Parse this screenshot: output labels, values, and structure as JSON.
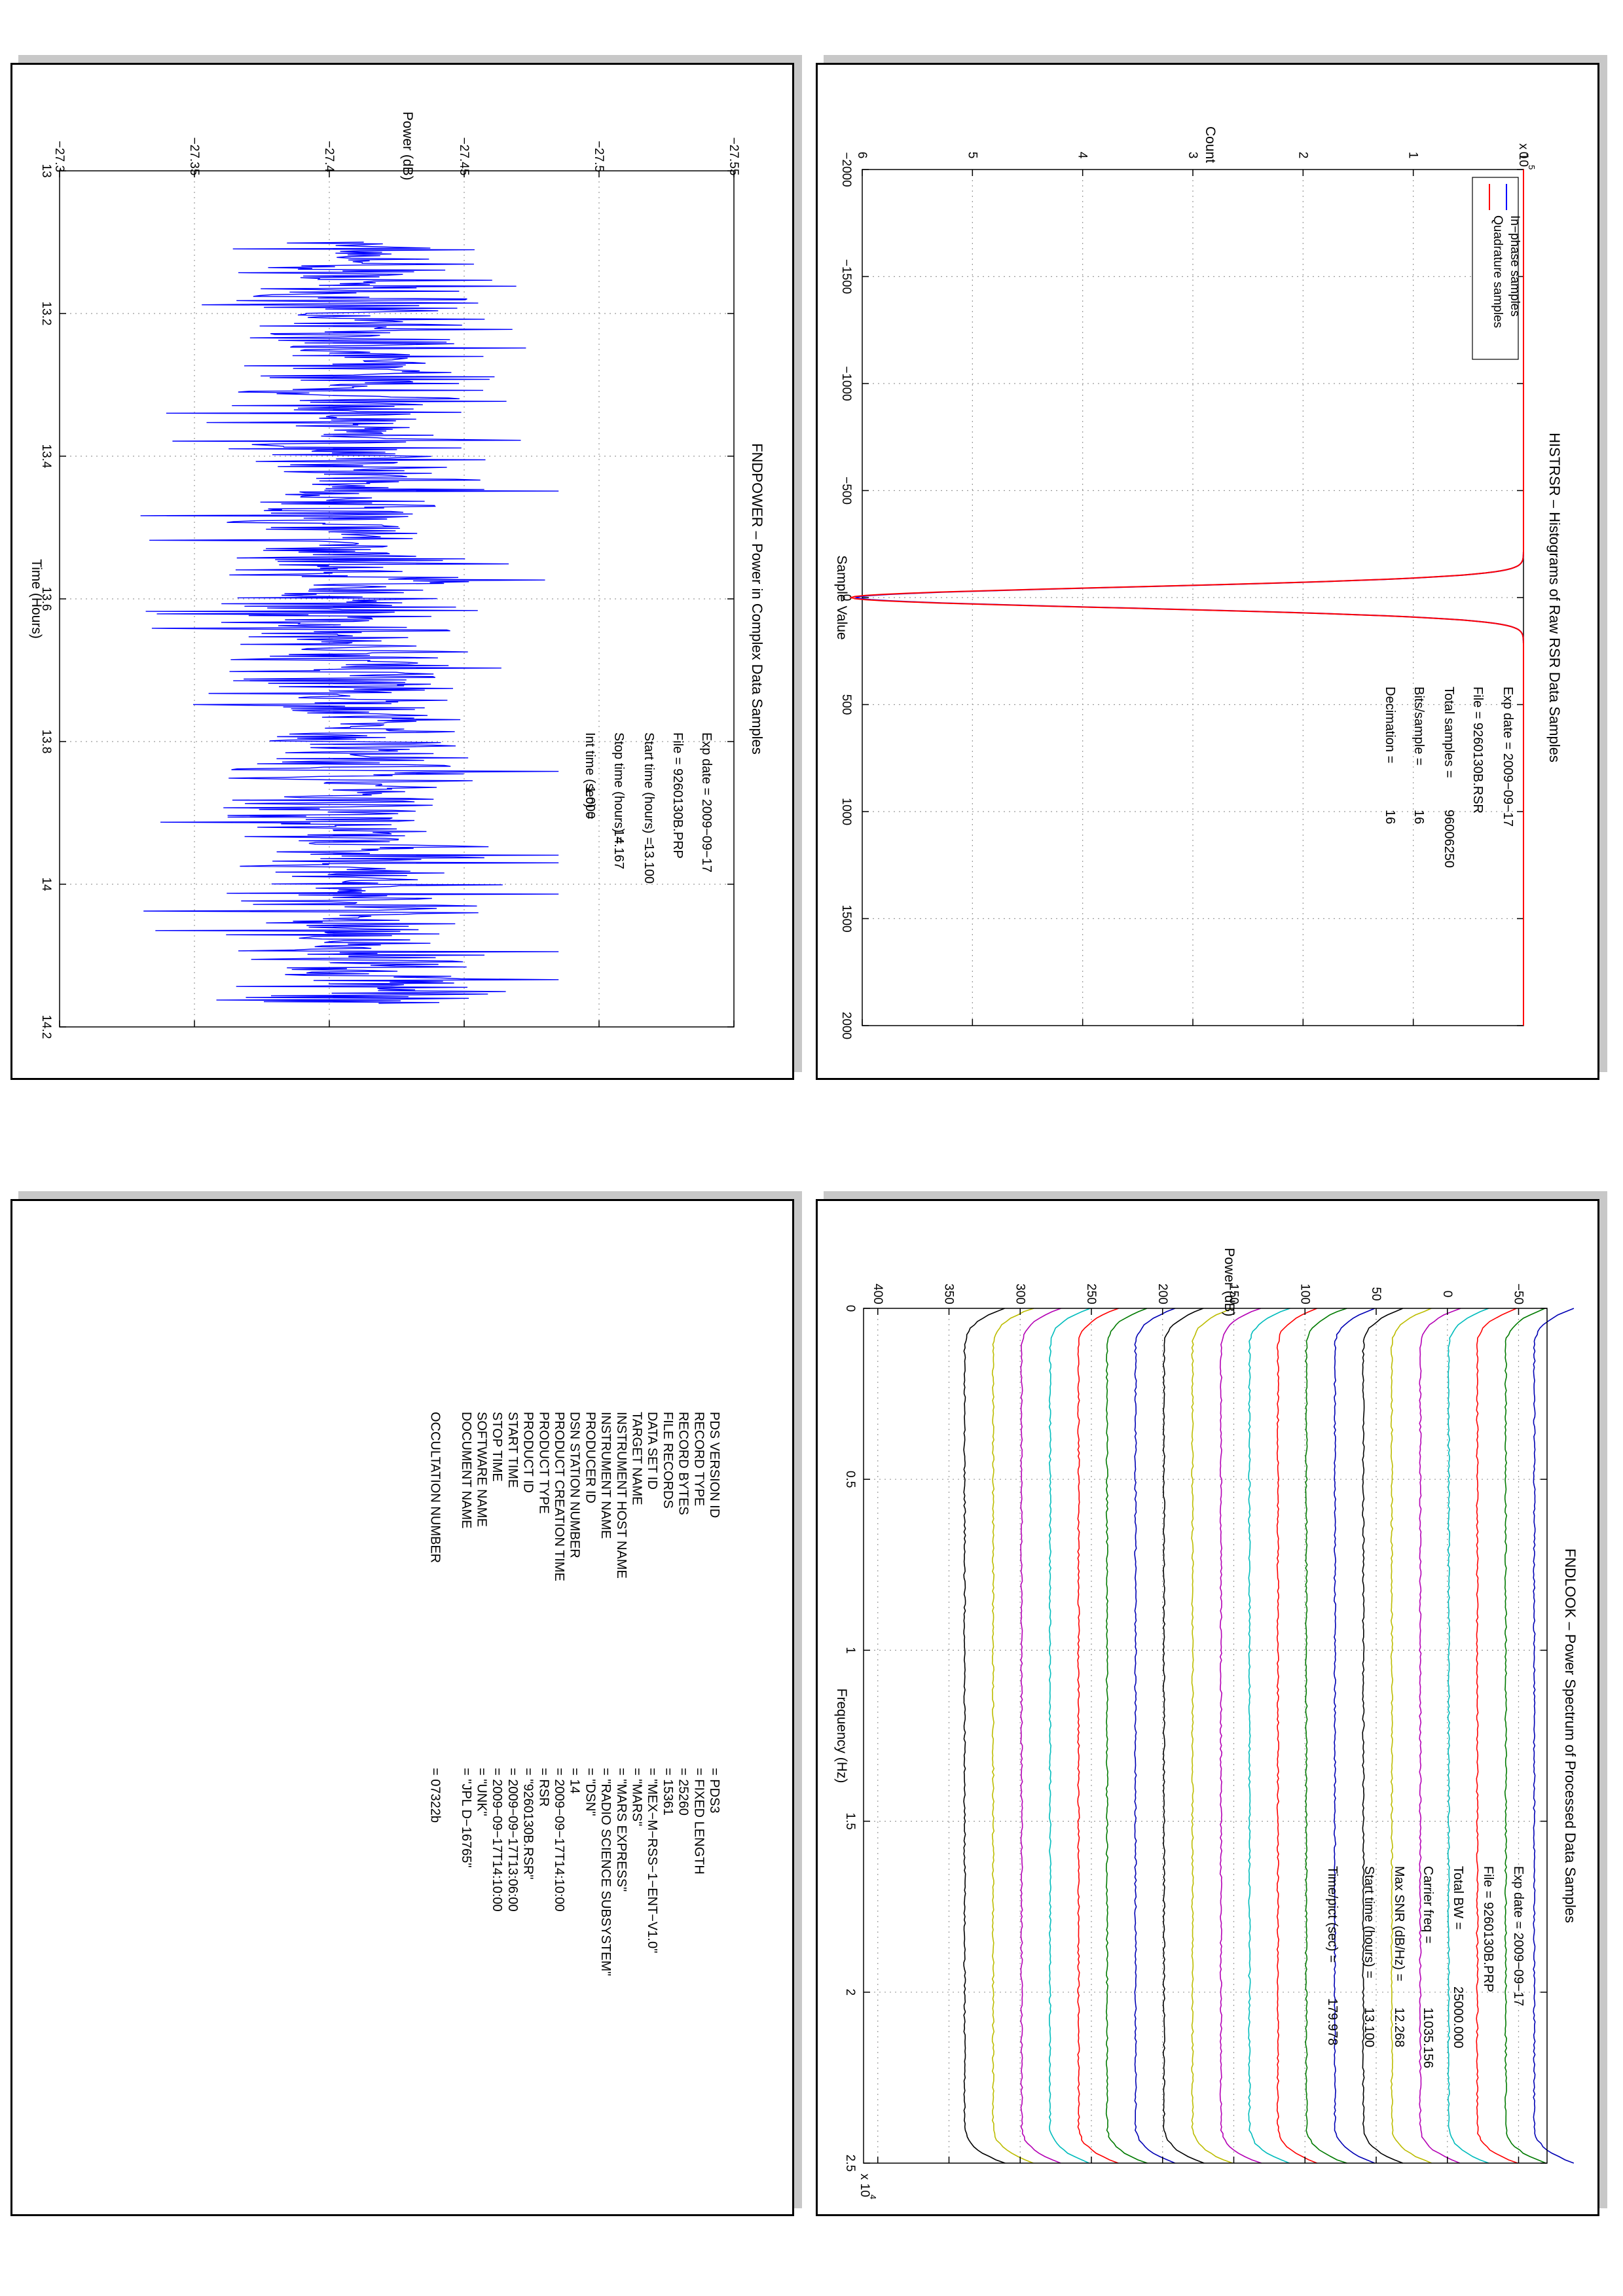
{
  "chart_data": [
    {
      "type": "line",
      "title": "HISTRSR – Histograms of Raw RSR Data Samples",
      "xlabel": "Sample Value",
      "ylabel": "Count",
      "y_exponent": "x 10",
      "y_exponent_power": "5",
      "xlim": [
        -2000,
        2000
      ],
      "ylim": [
        0,
        6
      ],
      "xticks": [
        "−2000",
        "−1500",
        "−1000",
        "−500",
        "0",
        "500",
        "1000",
        "1500",
        "2000"
      ],
      "yticks": [
        "0",
        "1",
        "2",
        "3",
        "4",
        "5",
        "6"
      ],
      "grid": true,
      "legend_position": "top-left",
      "series": [
        {
          "name": "In−phase samples",
          "color": "#0000ff",
          "shape": "gaussian",
          "peak": 6.05,
          "center": 0,
          "sigma": 48
        },
        {
          "name": "Quadrature samples",
          "color": "#ff0000",
          "shape": "gaussian",
          "peak": 6.1,
          "center": 0,
          "sigma": 48
        }
      ],
      "annotations": [
        {
          "label": "Exp date = 2009−09−17",
          "value": ""
        },
        {
          "label": "File = 9260130B.RSR",
          "value": ""
        },
        {
          "label": "Total samples =",
          "value": "96006250"
        },
        {
          "label": "Bits/sample   =",
          "value": "16"
        },
        {
          "label": "Decimation    =",
          "value": "16"
        }
      ]
    },
    {
      "type": "line",
      "title": "FNDPOWER – Power in Complex Data Samples",
      "xlabel": "Time (Hours)",
      "ylabel": "Power (dB)",
      "xlim": [
        13,
        14.2
      ],
      "ylim": [
        -27.55,
        -27.3
      ],
      "xticks": [
        "13",
        "13.2",
        "13.4",
        "13.6",
        "13.8",
        "14",
        "14.2"
      ],
      "yticks": [
        "−27.55",
        "−27.5",
        "−27.45",
        "−27.4",
        "−27.35",
        "−27.3"
      ],
      "grid": true,
      "series": [
        {
          "name": "",
          "color": "#0000ff",
          "x_start": 13.1,
          "x_end": 14.167,
          "points": 900,
          "mean": -27.41,
          "spread": 0.075,
          "peak_high": -27.33,
          "peak_low": -27.485
        }
      ],
      "annotations": [
        {
          "label": "Exp date = 2009−09−17",
          "value": ""
        },
        {
          "label": "File = 9260130B.PRP",
          "value": ""
        },
        {
          "label": "Start time (hours) =",
          "value": "13.100"
        },
        {
          "label": "Stop time (hours) =",
          "value": "14.167"
        },
        {
          "label": "Int time (sec) =",
          "value": "1.000"
        }
      ]
    },
    {
      "type": "line",
      "title": "FNDLOOK – Power Spectrum of Processed Data Samples",
      "xlabel": "Frequency (Hz)",
      "ylabel": "Power (dB)",
      "x_exponent": "x 10",
      "x_exponent_power": "4",
      "xlim": [
        0,
        2.5
      ],
      "ylim": [
        -70,
        410
      ],
      "xticks": [
        "0",
        "0.5",
        "1",
        "1.5",
        "2",
        "2.5"
      ],
      "yticks": [
        "−50",
        "0",
        "50",
        "100",
        "150",
        "200",
        "250",
        "300",
        "350",
        "400"
      ],
      "grid": true,
      "series": [
        {
          "name": "",
          "color": "#0000b4",
          "level": -61
        },
        {
          "name": "",
          "color": "#007a00",
          "level": -41
        },
        {
          "name": "",
          "color": "#ff0000",
          "level": -21
        },
        {
          "name": "",
          "color": "#00bcbc",
          "level": -1
        },
        {
          "name": "",
          "color": "#b400b4",
          "level": 19
        },
        {
          "name": "",
          "color": "#bcbc00",
          "level": 39
        },
        {
          "name": "",
          "color": "#000000",
          "level": 59
        },
        {
          "name": "",
          "color": "#0000b4",
          "level": 79
        },
        {
          "name": "",
          "color": "#007a00",
          "level": 99
        },
        {
          "name": "",
          "color": "#ff0000",
          "level": 119
        },
        {
          "name": "",
          "color": "#00bcbc",
          "level": 139
        },
        {
          "name": "",
          "color": "#b400b4",
          "level": 159
        },
        {
          "name": "",
          "color": "#bcbc00",
          "level": 179
        },
        {
          "name": "",
          "color": "#000000",
          "level": 199
        },
        {
          "name": "",
          "color": "#0000b4",
          "level": 219
        },
        {
          "name": "",
          "color": "#007a00",
          "level": 239
        },
        {
          "name": "",
          "color": "#ff0000",
          "level": 259
        },
        {
          "name": "",
          "color": "#00bcbc",
          "level": 279
        },
        {
          "name": "",
          "color": "#b400b4",
          "level": 299
        },
        {
          "name": "",
          "color": "#bcbc00",
          "level": 319
        },
        {
          "name": "",
          "color": "#000000",
          "level": 339
        }
      ],
      "annotations": [
        {
          "label": "Exp date = 2009−09−17",
          "value": ""
        },
        {
          "label": "File = 9260130B.PRP",
          "value": ""
        },
        {
          "label": "Total BW =",
          "value": "25000.000"
        },
        {
          "label": "Carrier freq =",
          "value": "11035.156"
        },
        {
          "label": "Max SNR (dB/Hz) =",
          "value": "12.268"
        },
        {
          "label": "Start time (hours) =",
          "value": "13.100"
        },
        {
          "label": "Time/pict (sec) =",
          "value": "179.978"
        }
      ]
    },
    {
      "type": "table",
      "rows": [
        {
          "key": "PDS VERSION ID",
          "value": "=  PDS3"
        },
        {
          "key": "RECORD TYPE",
          "value": "=  FIXED LENGTH"
        },
        {
          "key": "RECORD BYTES",
          "value": "=  25260"
        },
        {
          "key": "FILE RECORDS",
          "value": "=  15361"
        },
        {
          "key": "DATA SET ID",
          "value": "=  \"MEX−M−RSS−1−ENT−V1.0\""
        },
        {
          "key": "TARGET NAME",
          "value": "=  \"MARS\""
        },
        {
          "key": "INSTRUMENT HOST NAME",
          "value": "=  \"MARS EXPRESS\""
        },
        {
          "key": "INSTRUMENT NAME",
          "value": "=  \"RADIO SCIENCE SUBSYSTEM\""
        },
        {
          "key": "PRODUCER ID",
          "value": "=  \"DSN\""
        },
        {
          "key": "DSN STATION NUMBER",
          "value": "=  14"
        },
        {
          "key": "PRODUCT CREATION TIME",
          "value": "=  2009−09−17T14:10:00"
        },
        {
          "key": "PRODUCT TYPE",
          "value": "=  RSR"
        },
        {
          "key": "PRODUCT ID",
          "value": "=  \"9260130B.RSR\""
        },
        {
          "key": "START TIME",
          "value": "=  2009−09−17T13:06:00"
        },
        {
          "key": "STOP TIME",
          "value": "=  2009−09−17T14:10:00"
        },
        {
          "key": "SOFTWARE NAME",
          "value": "=  \"UNK\""
        },
        {
          "key": "DOCUMENT NAME",
          "value": "=  \"JPL D−16765\""
        },
        {
          "key": "",
          "value": ""
        },
        {
          "key": "OCCULTATION NUMBER",
          "value": "=  07322b"
        }
      ]
    }
  ]
}
